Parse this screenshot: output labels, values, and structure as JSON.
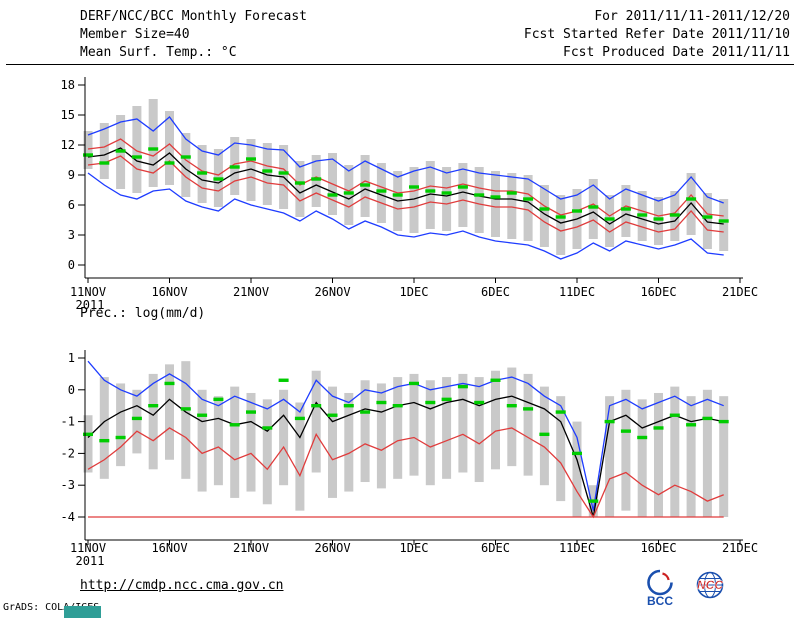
{
  "header": {
    "title": "DERF/NCC/BCC Monthly Forecast",
    "date_range": "For 2011/11/11-2011/12/20",
    "member_size": "Member Size=40",
    "refer_date": "Fcst Started Refer Date 2011/11/10",
    "produced_date": "Fcst Produced Date 2011/11/11"
  },
  "footer": {
    "url": "http://cmdp.ncc.cma.gov.cn",
    "credit": "GrADS: COLA/IGES",
    "bcc_logo_text": "BCC",
    "ncc_logo_text": "NCC",
    "logo_blue": "#1a4fae",
    "logo_red": "#cc2222",
    "artifact_color": "#2f9e97"
  },
  "chart_data": [
    {
      "type": "line",
      "title": "Mean Surf. Temp.: °C",
      "xlabel": "",
      "ylabel": "",
      "ylim": [
        0,
        18
      ],
      "yticks": [
        0,
        3,
        6,
        9,
        12,
        15,
        18
      ],
      "xtick_labels": [
        "11NOV",
        "16NOV",
        "21NOV",
        "26NOV",
        "1DEC",
        "6DEC",
        "11DEC",
        "16DEC",
        "21DEC"
      ],
      "x_year_label": "2011",
      "n_days": 40,
      "grid": false,
      "legend": "none",
      "bars": {
        "name": "ensemble-range",
        "color": "#c9c9c9",
        "high": [
          13.4,
          14.2,
          15.0,
          15.9,
          16.6,
          15.4,
          13.2,
          12.0,
          11.6,
          12.8,
          12.6,
          12.2,
          12.0,
          10.4,
          11.0,
          11.2,
          10.0,
          11.0,
          10.2,
          9.4,
          9.8,
          10.4,
          9.8,
          10.2,
          9.8,
          9.4,
          9.2,
          9.0,
          8.0,
          7.0,
          7.6,
          8.6,
          7.0,
          8.0,
          7.4,
          6.8,
          7.4,
          9.2,
          7.2,
          6.6
        ],
        "low": [
          9.6,
          8.6,
          7.6,
          7.2,
          7.8,
          8.0,
          6.8,
          6.2,
          5.8,
          7.0,
          6.4,
          6.0,
          5.6,
          4.8,
          5.8,
          5.0,
          4.0,
          4.8,
          4.2,
          3.4,
          3.2,
          3.6,
          3.4,
          3.8,
          3.2,
          2.8,
          2.6,
          2.4,
          1.8,
          1.0,
          1.6,
          2.6,
          1.8,
          2.8,
          2.4,
          2.0,
          2.4,
          3.0,
          1.6,
          1.4
        ]
      },
      "series": [
        {
          "name": "ensemble-max",
          "color": "#1e3cff",
          "values": [
            13.0,
            13.6,
            14.3,
            14.6,
            13.4,
            14.8,
            12.6,
            11.4,
            11.0,
            12.2,
            12.0,
            11.6,
            11.5,
            9.8,
            10.4,
            10.6,
            9.4,
            10.4,
            9.6,
            8.8,
            9.4,
            9.8,
            9.2,
            9.6,
            9.2,
            9.0,
            8.8,
            8.6,
            7.6,
            6.6,
            7.0,
            8.0,
            6.6,
            7.6,
            7.0,
            6.4,
            7.0,
            8.8,
            6.8,
            6.2
          ]
        },
        {
          "name": "upper-quartile",
          "color": "#e03c3c",
          "values": [
            11.6,
            11.8,
            12.6,
            11.4,
            10.9,
            12.1,
            10.5,
            9.4,
            9.0,
            10.1,
            10.4,
            9.9,
            9.6,
            8.0,
            8.8,
            8.1,
            7.4,
            8.4,
            7.8,
            7.2,
            7.4,
            7.9,
            7.7,
            8.1,
            7.7,
            7.4,
            7.4,
            7.1,
            5.9,
            5.0,
            5.4,
            6.1,
            4.9,
            5.9,
            5.4,
            4.9,
            5.2,
            7.0,
            5.1,
            4.9
          ]
        },
        {
          "name": "ensemble-mean",
          "color": "#000000",
          "values": [
            10.8,
            11.0,
            11.7,
            10.4,
            10.0,
            11.2,
            9.6,
            8.5,
            8.2,
            9.2,
            9.6,
            9.0,
            8.8,
            7.2,
            8.0,
            7.3,
            6.6,
            7.6,
            7.0,
            6.4,
            6.6,
            7.1,
            6.9,
            7.3,
            6.9,
            6.6,
            6.6,
            6.3,
            5.1,
            4.2,
            4.6,
            5.3,
            4.1,
            5.1,
            4.6,
            4.1,
            4.4,
            6.2,
            4.3,
            4.1
          ]
        },
        {
          "name": "lower-quartile",
          "color": "#e03c3c",
          "values": [
            10.0,
            10.2,
            10.9,
            9.6,
            9.2,
            10.4,
            8.8,
            7.7,
            7.4,
            8.4,
            8.8,
            8.2,
            8.0,
            6.4,
            7.2,
            6.5,
            5.8,
            6.8,
            6.2,
            5.6,
            5.8,
            6.3,
            6.1,
            6.5,
            6.1,
            5.8,
            5.8,
            5.5,
            4.3,
            3.4,
            3.8,
            4.5,
            3.3,
            4.3,
            3.8,
            3.3,
            3.6,
            5.4,
            3.5,
            3.3
          ]
        },
        {
          "name": "ensemble-min",
          "color": "#1e3cff",
          "values": [
            9.2,
            8.0,
            7.0,
            6.6,
            7.4,
            7.6,
            6.4,
            5.8,
            5.4,
            6.6,
            6.0,
            5.6,
            5.2,
            4.4,
            5.4,
            4.6,
            3.6,
            4.4,
            3.8,
            3.0,
            2.8,
            3.2,
            3.0,
            3.4,
            2.8,
            2.4,
            2.2,
            2.0,
            1.4,
            0.6,
            1.2,
            2.2,
            1.4,
            2.4,
            2.0,
            1.6,
            2.0,
            2.6,
            1.2,
            1.0
          ]
        }
      ],
      "markers": {
        "name": "verification",
        "color": "#00cc00",
        "values": [
          11.0,
          10.2,
          11.4,
          10.8,
          11.6,
          10.2,
          10.8,
          9.2,
          8.6,
          9.8,
          10.6,
          9.4,
          9.2,
          8.2,
          8.6,
          7.0,
          7.2,
          8.0,
          7.4,
          7.0,
          7.8,
          7.4,
          7.2,
          7.8,
          7.0,
          6.8,
          7.2,
          6.6,
          5.6,
          4.8,
          5.4,
          5.8,
          4.6,
          5.6,
          5.0,
          4.6,
          5.0,
          6.6,
          4.8,
          4.4
        ]
      }
    },
    {
      "type": "line",
      "title": "Prec.: log(mm/d)",
      "xlabel": "",
      "ylabel": "",
      "ylim": [
        -4,
        1
      ],
      "yticks": [
        -4,
        -3,
        -2,
        -1,
        0,
        1
      ],
      "xtick_labels": [
        "11NOV",
        "16NOV",
        "21NOV",
        "26NOV",
        "1DEC",
        "6DEC",
        "11DEC",
        "16DEC",
        "21DEC"
      ],
      "x_year_label": "2011",
      "n_days": 40,
      "grid": false,
      "legend": "none",
      "bars": {
        "name": "ensemble-range",
        "color": "#c9c9c9",
        "high": [
          -0.8,
          0.4,
          0.2,
          0.0,
          0.5,
          0.8,
          0.9,
          0.0,
          -0.2,
          0.1,
          -0.1,
          -0.3,
          0.0,
          -0.4,
          0.6,
          0.1,
          -0.1,
          0.3,
          0.2,
          0.4,
          0.5,
          0.3,
          0.4,
          0.5,
          0.4,
          0.6,
          0.7,
          0.5,
          0.1,
          -0.2,
          -1.0,
          -3.0,
          -0.2,
          0.0,
          -0.3,
          -0.1,
          0.1,
          -0.2,
          0.0,
          -0.2
        ],
        "low": [
          -2.6,
          -2.8,
          -2.4,
          -2.0,
          -2.5,
          -2.2,
          -2.8,
          -3.2,
          -3.0,
          -3.4,
          -3.2,
          -3.6,
          -3.0,
          -3.8,
          -2.6,
          -3.4,
          -3.2,
          -2.9,
          -3.1,
          -2.8,
          -2.7,
          -3.0,
          -2.8,
          -2.6,
          -2.9,
          -2.5,
          -2.4,
          -2.7,
          -3.0,
          -3.5,
          -4.0,
          -4.0,
          -4.0,
          -3.8,
          -4.0,
          -4.0,
          -4.0,
          -4.0,
          -4.0,
          -4.0
        ]
      },
      "series": [
        {
          "name": "ensemble-max",
          "color": "#1e3cff",
          "values": [
            0.9,
            0.3,
            0.0,
            -0.2,
            0.2,
            0.5,
            0.2,
            -0.3,
            -0.5,
            -0.2,
            -0.4,
            -0.6,
            -0.3,
            -0.7,
            0.3,
            -0.2,
            -0.4,
            0.0,
            -0.1,
            0.1,
            0.2,
            0.0,
            0.1,
            0.2,
            0.1,
            0.3,
            0.4,
            0.2,
            -0.2,
            -0.5,
            -1.5,
            -3.8,
            -0.5,
            -0.3,
            -0.6,
            -0.4,
            -0.2,
            -0.5,
            -0.3,
            -0.5
          ]
        },
        {
          "name": "ensemble-mean",
          "color": "#000000",
          "values": [
            -1.5,
            -1.0,
            -0.7,
            -0.5,
            -0.8,
            -0.3,
            -0.7,
            -1.0,
            -0.9,
            -1.1,
            -1.0,
            -1.3,
            -0.8,
            -1.5,
            -0.4,
            -1.0,
            -0.8,
            -0.6,
            -0.7,
            -0.5,
            -0.4,
            -0.6,
            -0.4,
            -0.3,
            -0.5,
            -0.3,
            -0.2,
            -0.4,
            -0.6,
            -1.0,
            -2.2,
            -4.0,
            -1.0,
            -0.8,
            -1.2,
            -1.0,
            -0.8,
            -1.0,
            -0.9,
            -1.0
          ]
        },
        {
          "name": "lower-quartile",
          "color": "#e03c3c",
          "values": [
            -2.5,
            -2.2,
            -1.8,
            -1.3,
            -1.6,
            -1.2,
            -1.5,
            -2.0,
            -1.8,
            -2.2,
            -2.0,
            -2.5,
            -1.8,
            -2.7,
            -1.4,
            -2.2,
            -2.0,
            -1.7,
            -1.9,
            -1.6,
            -1.5,
            -1.8,
            -1.6,
            -1.4,
            -1.7,
            -1.3,
            -1.2,
            -1.5,
            -1.8,
            -2.3,
            -3.2,
            -4.0,
            -2.8,
            -2.6,
            -3.0,
            -3.3,
            -3.0,
            -3.2,
            -3.5,
            -3.3
          ]
        },
        {
          "name": "ensemble-min",
          "color": "#e03c3c",
          "values": [
            -4.0,
            -4.0,
            -4.0,
            -4.0,
            -4.0,
            -4.0,
            -4.0,
            -4.0,
            -4.0,
            -4.0,
            -4.0,
            -4.0,
            -4.0,
            -4.0,
            -4.0,
            -4.0,
            -4.0,
            -4.0,
            -4.0,
            -4.0,
            -4.0,
            -4.0,
            -4.0,
            -4.0,
            -4.0,
            -4.0,
            -4.0,
            -4.0,
            -4.0,
            -4.0,
            -4.0,
            -4.0,
            -4.0,
            -4.0,
            -4.0,
            -4.0,
            -4.0,
            -4.0,
            -4.0,
            -4.0
          ]
        }
      ],
      "markers": {
        "name": "verification",
        "color": "#00cc00",
        "values": [
          -1.4,
          -1.6,
          -1.5,
          -0.9,
          -0.5,
          0.2,
          -0.6,
          -0.8,
          -0.3,
          -1.1,
          -0.7,
          -1.2,
          0.3,
          -0.9,
          -0.5,
          -0.8,
          -0.5,
          -0.7,
          -0.4,
          -0.5,
          0.2,
          -0.4,
          -0.3,
          0.1,
          -0.4,
          0.3,
          -0.5,
          -0.6,
          -1.4,
          -0.7,
          -2.0,
          -3.5,
          -1.0,
          -1.3,
          -1.5,
          -1.2,
          -0.8,
          -1.1,
          -0.9,
          -1.0
        ]
      }
    }
  ]
}
